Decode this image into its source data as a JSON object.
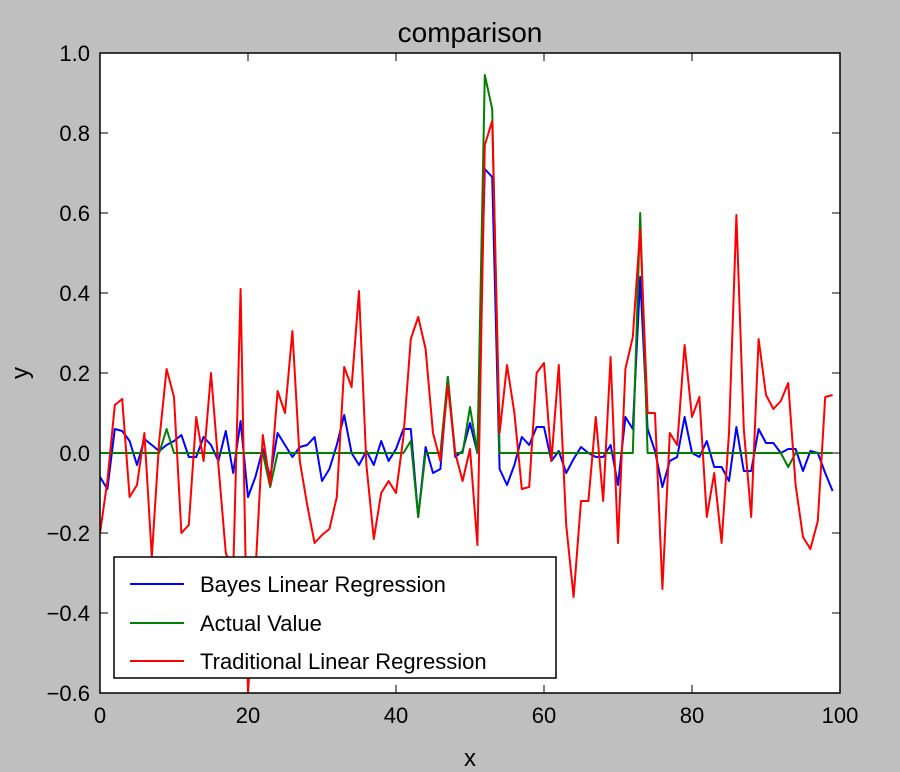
{
  "chart_data": {
    "type": "line",
    "title": "comparison",
    "xlabel": "x",
    "ylabel": "y",
    "xlim": [
      0,
      100
    ],
    "ylim": [
      -0.6,
      1.0
    ],
    "xticks": [
      0,
      20,
      40,
      60,
      80,
      100
    ],
    "xtick_labels": [
      "0",
      "20",
      "40",
      "60",
      "80",
      "100"
    ],
    "yticks": [
      -0.6,
      -0.4,
      -0.2,
      0.0,
      0.2,
      0.4,
      0.6,
      0.8,
      1.0
    ],
    "ytick_labels": [
      "−0.6",
      "−0.4",
      "−0.2",
      "0.0",
      "0.2",
      "0.4",
      "0.6",
      "0.8",
      "1.0"
    ],
    "grid": false,
    "legend_position": "lower-left",
    "x": [
      0,
      1,
      2,
      3,
      4,
      5,
      6,
      7,
      8,
      9,
      10,
      11,
      12,
      13,
      14,
      15,
      16,
      17,
      18,
      19,
      20,
      21,
      22,
      23,
      24,
      25,
      26,
      27,
      28,
      29,
      30,
      31,
      32,
      33,
      34,
      35,
      36,
      37,
      38,
      39,
      40,
      41,
      42,
      43,
      44,
      45,
      46,
      47,
      48,
      49,
      50,
      51,
      52,
      53,
      54,
      55,
      56,
      57,
      58,
      59,
      60,
      61,
      62,
      63,
      64,
      65,
      66,
      67,
      68,
      69,
      70,
      71,
      72,
      73,
      74,
      75,
      76,
      77,
      78,
      79,
      80,
      81,
      82,
      83,
      84,
      85,
      86,
      87,
      88,
      89,
      90,
      91,
      92,
      93,
      94,
      95,
      96,
      97,
      98,
      99
    ],
    "series": [
      {
        "name": "Bayes Linear Regression",
        "color": "#0000ff",
        "values": [
          -0.06,
          -0.09,
          0.06,
          0.055,
          0.03,
          -0.03,
          0.035,
          0.02,
          0.005,
          0.02,
          0.03,
          0.045,
          -0.01,
          -0.01,
          0.04,
          0.02,
          -0.02,
          0.055,
          -0.05,
          0.08,
          -0.11,
          -0.06,
          0.01,
          -0.06,
          0.05,
          0.02,
          -0.01,
          0.015,
          0.02,
          0.04,
          -0.07,
          -0.04,
          0.02,
          0.095,
          0.0,
          -0.03,
          0.005,
          -0.03,
          0.03,
          -0.02,
          0.01,
          0.06,
          0.06,
          -0.16,
          0.015,
          -0.05,
          -0.04,
          0.19,
          -0.01,
          0.005,
          0.075,
          0.0,
          0.71,
          0.69,
          -0.04,
          -0.08,
          -0.03,
          0.04,
          0.02,
          0.065,
          0.065,
          -0.02,
          0.005,
          -0.05,
          -0.015,
          0.015,
          0.0,
          -0.01,
          -0.01,
          0.02,
          -0.08,
          0.09,
          0.06,
          0.44,
          0.06,
          0.005,
          -0.085,
          -0.02,
          -0.01,
          0.09,
          0.0,
          -0.01,
          0.03,
          -0.035,
          -0.035,
          -0.07,
          0.065,
          -0.045,
          -0.045,
          0.06,
          0.025,
          0.025,
          0.0,
          0.01,
          0.01,
          -0.045,
          0.005,
          0.0,
          -0.05,
          -0.095
        ]
      },
      {
        "name": "Actual Value",
        "color": "#008000",
        "values": [
          0.0,
          0.0,
          0.0,
          0.0,
          0.0,
          0.0,
          0.0,
          0.0,
          0.0,
          0.06,
          0.0,
          0.0,
          0.0,
          0.0,
          0.0,
          0.0,
          0.0,
          0.0,
          0.0,
          0.0,
          0.0,
          0.0,
          0.0,
          -0.085,
          0.0,
          0.0,
          0.0,
          0.0,
          0.0,
          0.0,
          0.0,
          0.0,
          0.0,
          0.0,
          0.0,
          0.0,
          0.0,
          0.0,
          0.0,
          0.0,
          0.0,
          0.0,
          0.03,
          -0.16,
          0.0,
          0.0,
          0.0,
          0.19,
          0.0,
          0.0,
          0.115,
          0.0,
          0.945,
          0.86,
          0.0,
          0.0,
          0.0,
          0.0,
          0.0,
          0.0,
          0.0,
          0.0,
          0.0,
          0.0,
          0.0,
          0.0,
          0.0,
          0.0,
          0.0,
          0.0,
          0.0,
          0.0,
          0.0,
          0.6,
          0.0,
          0.0,
          0.0,
          0.0,
          0.0,
          0.0,
          0.0,
          0.0,
          0.0,
          0.0,
          0.0,
          0.0,
          0.0,
          0.0,
          0.0,
          0.0,
          0.0,
          0.0,
          0.0,
          -0.035,
          0.0,
          0.0,
          0.0,
          0.0,
          0.0,
          0.0
        ]
      },
      {
        "name": "Traditional Linear Regression",
        "color": "#ff0000",
        "values": [
          -0.2,
          -0.07,
          0.12,
          0.135,
          -0.11,
          -0.08,
          0.05,
          -0.26,
          0.03,
          0.21,
          0.14,
          -0.2,
          -0.18,
          0.09,
          -0.02,
          0.2,
          -0.03,
          -0.25,
          -0.3,
          0.41,
          -0.6,
          -0.3,
          0.045,
          -0.08,
          0.155,
          0.1,
          0.305,
          -0.02,
          -0.13,
          -0.225,
          -0.205,
          -0.19,
          -0.11,
          0.215,
          0.165,
          0.405,
          -0.03,
          -0.215,
          -0.1,
          -0.07,
          -0.1,
          0.04,
          0.285,
          0.34,
          0.26,
          0.05,
          -0.02,
          0.17,
          0.0,
          -0.07,
          0.01,
          -0.23,
          0.77,
          0.83,
          0.05,
          0.22,
          0.1,
          -0.09,
          -0.085,
          0.2,
          0.225,
          -0.02,
          0.22,
          -0.18,
          -0.36,
          -0.12,
          -0.12,
          0.09,
          -0.12,
          0.24,
          -0.225,
          0.21,
          0.29,
          0.56,
          0.1,
          0.1,
          -0.34,
          0.05,
          0.02,
          0.27,
          0.09,
          0.14,
          -0.16,
          -0.05,
          -0.225,
          0.05,
          0.595,
          0.06,
          -0.16,
          0.285,
          0.145,
          0.11,
          0.13,
          0.175,
          -0.08,
          -0.21,
          -0.24,
          -0.17,
          0.14,
          0.145
        ]
      }
    ]
  }
}
